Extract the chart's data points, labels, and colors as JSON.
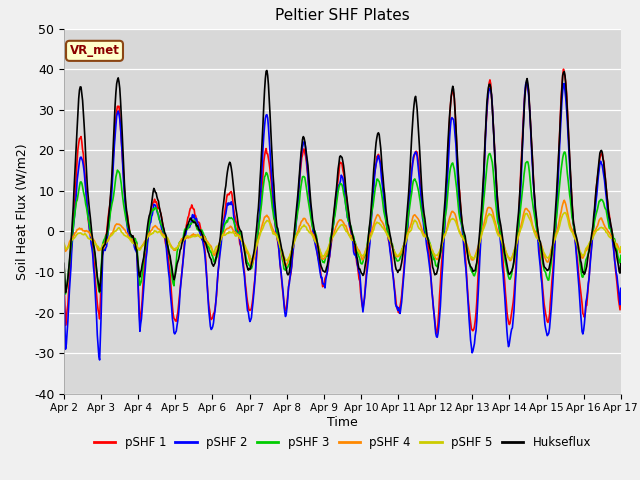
{
  "title": "Peltier SHF Plates",
  "xlabel": "Time",
  "ylabel": "Soil Heat Flux (W/m2)",
  "ylim": [
    -40,
    50
  ],
  "yticks": [
    -40,
    -30,
    -20,
    -10,
    0,
    10,
    20,
    30,
    40,
    50
  ],
  "xtick_labels": [
    "Apr 2",
    "Apr 3",
    "Apr 4",
    "Apr 5",
    "Apr 6",
    "Apr 7",
    "Apr 8",
    "Apr 9",
    "Apr 10",
    "Apr 11",
    "Apr 12",
    "Apr 13",
    "Apr 14",
    "Apr 15",
    "Apr 16",
    "Apr 17"
  ],
  "series_colors": [
    "#ff0000",
    "#0000ff",
    "#00cc00",
    "#ff8800",
    "#cccc00",
    "#000000"
  ],
  "series_labels": [
    "pSHF 1",
    "pSHF 2",
    "pSHF 3",
    "pSHF 4",
    "pSHF 5",
    "Hukseflux"
  ],
  "annotation_text": "VR_met",
  "bg_color": "#d8d8d8",
  "fig_color": "#f0f0f0",
  "n_days": 15,
  "pts_per_day": 48
}
